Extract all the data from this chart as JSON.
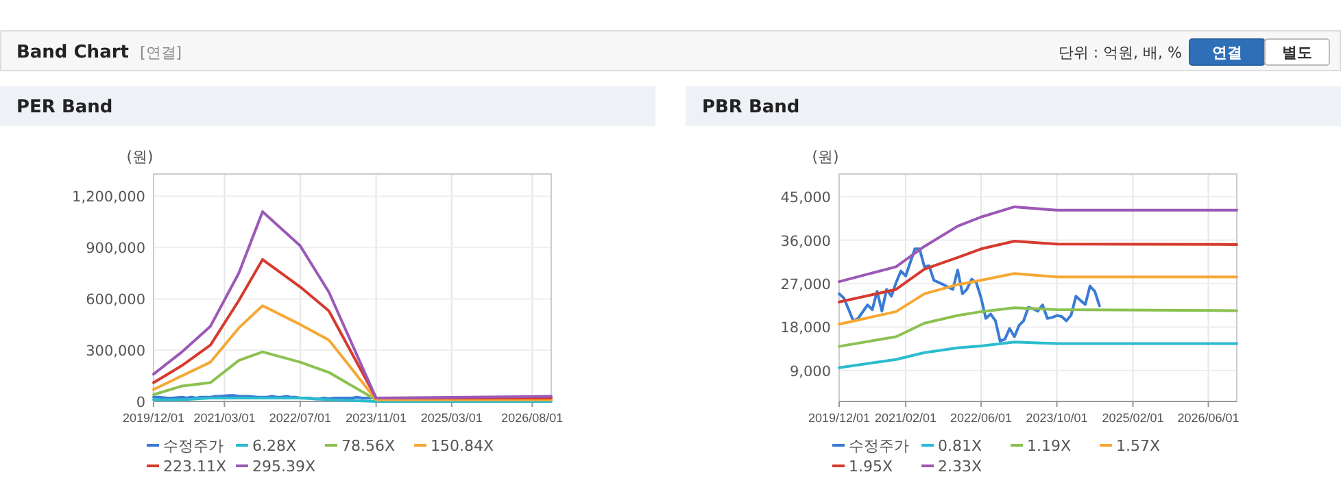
{
  "chart_data": [
    {
      "type": "other",
      "title": "Band Chart",
      "annotations": [
        "[연결]",
        "단위 : 억원, 배, %",
        "연결",
        "별도"
      ]
    },
    {
      "type": "line",
      "title": "PER Band",
      "ylabel": "(원)",
      "xlim": [
        "2019-12-01",
        "2026-12-01"
      ],
      "ylim": [
        0,
        1330000
      ],
      "xticks": [
        {
          "value": "2019-12-01",
          "label": "2019/12/01"
        },
        {
          "value": "2021-03-01",
          "label": "2021/03/01"
        },
        {
          "value": "2022-07-01",
          "label": "2022/07/01"
        },
        {
          "value": "2023-11-01",
          "label": "2023/11/01"
        },
        {
          "value": "2025-03-01",
          "label": "2025/03/01"
        },
        {
          "value": "2026-08-01",
          "label": "2026/08/01"
        }
      ],
      "yticks": [
        {
          "value": 0,
          "label": "0"
        },
        {
          "value": 300000,
          "label": "300,000"
        },
        {
          "value": 600000,
          "label": "600,000"
        },
        {
          "value": 900000,
          "label": "900,000"
        },
        {
          "value": 1200000,
          "label": "1,200,000"
        }
      ],
      "grid": true,
      "legend": "bottom",
      "x": [
        "2019-12",
        "2020-06",
        "2020-12",
        "2021-06",
        "2021-11",
        "2022-07",
        "2023-01",
        "2023-11",
        "2026-12"
      ],
      "series": [
        {
          "name": "수정주가",
          "color": "#3a7bd5",
          "x": [
            "2019-12",
            "2020-01",
            "2020-03",
            "2020-04",
            "2020-06",
            "2020-07",
            "2020-08",
            "2020-09",
            "2020-10",
            "2020-11",
            "2020-12",
            "2021-01",
            "2021-02",
            "2021-04",
            "2021-05",
            "2021-06",
            "2021-07",
            "2021-08",
            "2021-10",
            "2021-12",
            "2022-01",
            "2022-02",
            "2022-03",
            "2022-04",
            "2022-05",
            "2022-06",
            "2022-07",
            "2022-08",
            "2022-09",
            "2022-10",
            "2022-11",
            "2022-12",
            "2023-01",
            "2023-02",
            "2023-03",
            "2023-04",
            "2023-05",
            "2023-06",
            "2023-07",
            "2023-08",
            "2023-09",
            "2023-10"
          ],
          "values": [
            25000,
            25000,
            20000,
            20000,
            25000,
            20000,
            25000,
            20000,
            25000,
            25000,
            25000,
            30000,
            30000,
            35000,
            35000,
            30000,
            30000,
            30000,
            25000,
            25000,
            30000,
            25000,
            25000,
            30000,
            25000,
            25000,
            20000,
            20000,
            20000,
            15000,
            15000,
            20000,
            15000,
            20000,
            20000,
            20000,
            20000,
            20000,
            25000,
            20000,
            20000,
            20000
          ]
        },
        {
          "name": "6.28X",
          "color": "#2bbccf",
          "values": [
            10000,
            10000,
            20000,
            20000,
            20000,
            20000,
            10000,
            0,
            0
          ]
        },
        {
          "name": "78.56X",
          "color": "#8cc152",
          "values": [
            40000,
            90000,
            110000,
            240000,
            290000,
            230000,
            170000,
            10000,
            10000
          ]
        },
        {
          "name": "150.84X",
          "color": "#f5a834",
          "values": [
            70000,
            150000,
            230000,
            430000,
            560000,
            450000,
            360000,
            10000,
            10000
          ]
        },
        {
          "name": "223.11X",
          "color": "#d63a2e",
          "values": [
            110000,
            210000,
            330000,
            590000,
            830000,
            670000,
            530000,
            20000,
            20000
          ]
        },
        {
          "name": "295.39X",
          "color": "#9b59b6",
          "values": [
            160000,
            290000,
            440000,
            750000,
            1110000,
            910000,
            640000,
            20000,
            30000
          ]
        }
      ]
    },
    {
      "type": "line",
      "title": "PBR Band",
      "ylabel": "(원)",
      "xlim": [
        "2019-12-01",
        "2026-12-01"
      ],
      "ylim": [
        2600,
        49700
      ],
      "xticks": [
        {
          "value": "2019-12-01",
          "label": "2019/12/01"
        },
        {
          "value": "2021-02-01",
          "label": "2021/02/01"
        },
        {
          "value": "2022-06-01",
          "label": "2022/06/01"
        },
        {
          "value": "2023-10-01",
          "label": "2023/10/01"
        },
        {
          "value": "2025-02-01",
          "label": "2025/02/01"
        },
        {
          "value": "2026-06-01",
          "label": "2026/06/01"
        }
      ],
      "yticks": [
        {
          "value": 9000,
          "label": "9,000"
        },
        {
          "value": 18000,
          "label": "18,000"
        },
        {
          "value": 27000,
          "label": "27,000"
        },
        {
          "value": 36000,
          "label": "36,000"
        },
        {
          "value": 45000,
          "label": "45,000"
        }
      ],
      "grid": true,
      "legend": "bottom",
      "x": [
        "2019-12",
        "2020-12",
        "2021-06",
        "2022-01",
        "2022-06",
        "2023-01",
        "2023-10",
        "2026-12"
      ],
      "series": [
        {
          "name": "수정주가",
          "color": "#3a7bd5",
          "x": [
            "2019-12",
            "2020-01",
            "2020-03",
            "2020-04",
            "2020-06",
            "2020-07",
            "2020-08",
            "2020-09",
            "2020-10",
            "2020-11",
            "2020-12",
            "2021-01",
            "2021-02",
            "2021-04",
            "2021-05",
            "2021-06",
            "2021-07",
            "2021-08",
            "2021-10",
            "2021-12",
            "2022-01",
            "2022-02",
            "2022-03",
            "2022-04",
            "2022-05",
            "2022-06",
            "2022-07",
            "2022-08",
            "2022-09",
            "2022-10",
            "2022-11",
            "2022-12",
            "2023-01",
            "2023-02",
            "2023-03",
            "2023-04",
            "2023-05",
            "2023-06",
            "2023-07",
            "2023-08",
            "2023-09",
            "2023-10",
            "2023-11",
            "2023-12",
            "2024-01",
            "2024-02",
            "2024-03",
            "2024-04",
            "2024-05",
            "2024-06",
            "2024-07"
          ],
          "values": [
            24900,
            24000,
            19300,
            19800,
            22600,
            21600,
            25400,
            21300,
            25800,
            24400,
            27200,
            29600,
            28600,
            34200,
            34200,
            30500,
            30700,
            27700,
            26800,
            25800,
            29800,
            24900,
            25800,
            27900,
            27200,
            24000,
            19800,
            20700,
            19300,
            15100,
            15500,
            17700,
            16000,
            18400,
            19300,
            22100,
            21800,
            21300,
            22600,
            19800,
            20000,
            20400,
            20200,
            19300,
            20500,
            24400,
            23500,
            22700,
            26500,
            25400,
            22400
          ]
        },
        {
          "name": "0.81X",
          "color": "#2bbccf",
          "values": [
            9600,
            11300,
            12700,
            13700,
            14100,
            14900,
            14600,
            14600
          ]
        },
        {
          "name": "1.19X",
          "color": "#8cc152",
          "values": [
            14000,
            16000,
            18800,
            20400,
            21200,
            22000,
            21600,
            21400
          ]
        },
        {
          "name": "1.57X",
          "color": "#f5a834",
          "values": [
            18600,
            21200,
            24900,
            26800,
            27700,
            29100,
            28400,
            28400
          ]
        },
        {
          "name": "1.95X",
          "color": "#d63a2e",
          "values": [
            23200,
            25800,
            30000,
            32400,
            34200,
            35800,
            35200,
            35100
          ]
        },
        {
          "name": "2.33X",
          "color": "#9b59b6",
          "values": [
            27400,
            30500,
            34700,
            38900,
            40800,
            42900,
            42200,
            42200
          ]
        }
      ]
    }
  ]
}
